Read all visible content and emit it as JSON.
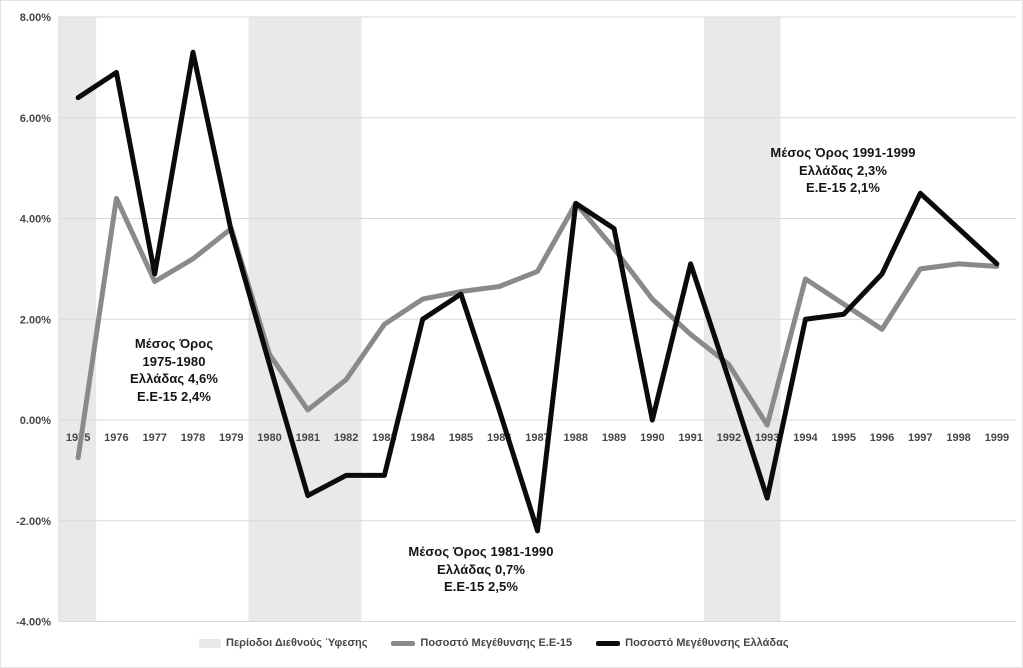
{
  "chart_data": {
    "type": "line",
    "title": "",
    "xlabel": "",
    "ylabel": "",
    "categories": [
      "1975",
      "1976",
      "1977",
      "1978",
      "1979",
      "1980",
      "1981",
      "1982",
      "1983",
      "1984",
      "1985",
      "1986",
      "1987",
      "1988",
      "1989",
      "1990",
      "1991",
      "1992",
      "1993",
      "1994",
      "1995",
      "1996",
      "1997",
      "1998",
      "1999"
    ],
    "series": [
      {
        "name": "Ποσοστό Μεγέθυνσης Ε.Ε-15",
        "color": "#8a8a8a",
        "values": [
          -0.75,
          4.4,
          2.75,
          3.2,
          3.8,
          1.3,
          0.2,
          0.8,
          1.9,
          2.4,
          2.55,
          2.65,
          2.95,
          4.3,
          3.4,
          2.4,
          1.7,
          1.1,
          -0.1,
          2.8,
          2.3,
          1.8,
          3.0,
          3.1,
          3.05
        ]
      },
      {
        "name": "Ποσοστό Μεγέθυνσης Ελλάδας",
        "color": "#0b0b0b",
        "values": [
          6.4,
          6.9,
          2.9,
          7.3,
          3.75,
          1.1,
          -1.5,
          -1.1,
          -1.1,
          2.0,
          2.5,
          0.2,
          -2.2,
          4.3,
          3.8,
          0.0,
          3.1,
          0.8,
          -1.55,
          2.0,
          2.1,
          2.9,
          4.5,
          3.8,
          3.1
        ]
      }
    ],
    "y_axis": {
      "min": -4,
      "max": 8,
      "step": 2,
      "ticks": [
        8,
        6,
        4,
        2,
        0,
        -2,
        -4
      ],
      "tick_labels": [
        "8.00%",
        "6.00%",
        "4.00%",
        "2.00%",
        "0.00%",
        "-2.00%",
        "-4.00%"
      ]
    },
    "grid": "horizontal",
    "gridline_color": "#d9d9d9",
    "axis_label_color": "#474747",
    "recession_bands": {
      "label": "Περίοδοι Διεθνούς Ύφεσης",
      "color": "#e9e9e9",
      "ranges_year_index": [
        [
          -0.5,
          0.47
        ],
        [
          4.45,
          7.4
        ],
        [
          16.35,
          18.35
        ]
      ]
    },
    "legend": {
      "position": "bottom",
      "items": [
        {
          "label": "Περίοδοι Διεθνούς Ύφεσης",
          "swatch": "band"
        },
        {
          "label": "Ποσοστό Μεγέθυνσης Ε.Ε-15",
          "swatch": "gray-line"
        },
        {
          "label": "Ποσοστό Μεγέθυνσης Ελλάδας",
          "swatch": "black-line"
        }
      ]
    },
    "annotations": [
      {
        "lines": [
          "Μέσος Όρος",
          "1975-1980",
          "Ελλάδας 4,6%",
          "Ε.Ε-15 2,4%"
        ]
      },
      {
        "lines": [
          "Μέσος Όρος 1981-1990",
          "Ελλάδας 0,7%",
          "Ε.Ε-15 2,5%"
        ]
      },
      {
        "lines": [
          "Μέσος Όρος 1991-1999",
          "Ελλάδας 2,3%",
          "Ε.Ε-15 2,1%"
        ]
      }
    ]
  }
}
